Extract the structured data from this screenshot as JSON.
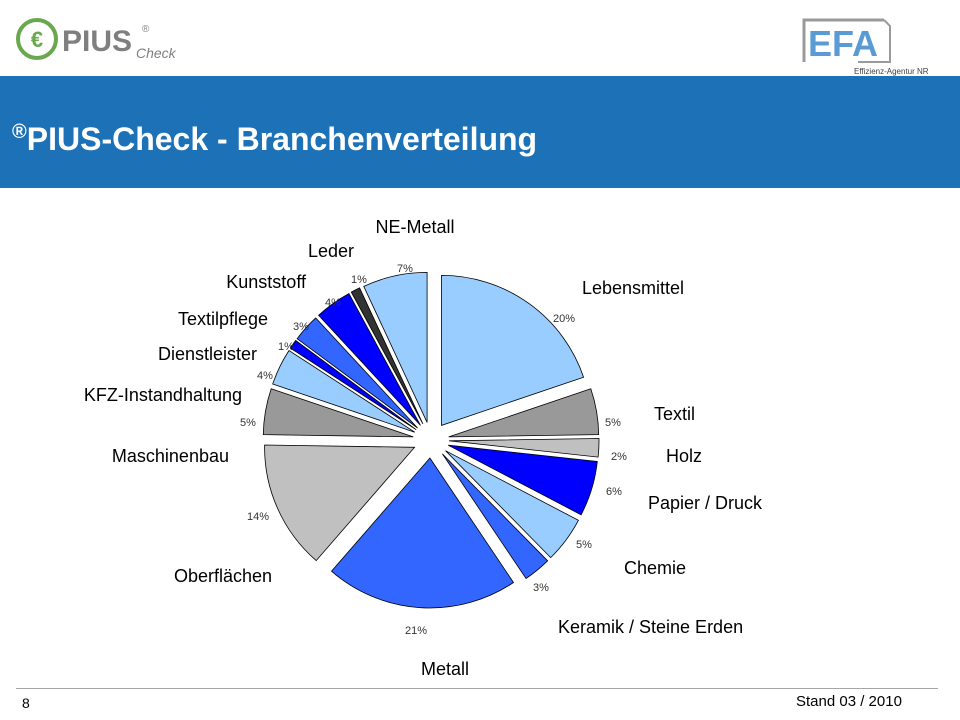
{
  "header": {
    "logo_left": "PIUS",
    "logo_left_sub": "Check",
    "logo_right": "EFA",
    "logo_right_sub": "Effizienz-Agentur NRW",
    "title_mark": "®",
    "title": "PIUS-Check - Branchenverteilung"
  },
  "chart_data": {
    "type": "pie",
    "exploded": true,
    "start_angle_deg": 0,
    "direction": "clockwise",
    "slices": [
      {
        "label": "Lebensmittel",
        "value": 20,
        "value_label": "20%",
        "color": "#99ccff"
      },
      {
        "label": "Textil",
        "value": 5,
        "value_label": "5%",
        "color": "#999999"
      },
      {
        "label": "Holz",
        "value": 2,
        "value_label": "2%",
        "color": "#c0c0c0"
      },
      {
        "label": "Papier / Druck",
        "value": 6,
        "value_label": "6%",
        "color": "#0000ff"
      },
      {
        "label": "Chemie",
        "value": 5,
        "value_label": "5%",
        "color": "#99ccff"
      },
      {
        "label": "Keramik / Steine Erden",
        "value": 3,
        "value_label": "3%",
        "color": "#3366ff"
      },
      {
        "label": "Metall",
        "value": 21,
        "value_label": "21%",
        "color": "#3366ff"
      },
      {
        "label": "Oberflächen",
        "value": 14,
        "value_label": "14%",
        "color": "#c0c0c0"
      },
      {
        "label": "Maschinenbau",
        "value": 5,
        "value_label": "5%",
        "color": "#999999"
      },
      {
        "label": "KFZ-Instandhaltung",
        "value": 4,
        "value_label": "4%",
        "color": "#99ccff"
      },
      {
        "label": "Dienstleister",
        "value": 1,
        "value_label": "1%",
        "color": "#0000ff"
      },
      {
        "label": "Textilpflege",
        "value": 3,
        "value_label": "3%",
        "color": "#3366ff"
      },
      {
        "label": "Kunststoff",
        "value": 4,
        "value_label": "4%",
        "color": "#0000ff"
      },
      {
        "label": "Leder",
        "value": 1,
        "value_label": "1%",
        "color": "#333333"
      },
      {
        "label": "NE-Metall",
        "value": 7,
        "value_label": "7%",
        "color": "#99ccff"
      }
    ]
  },
  "footer": {
    "page_number": "8",
    "date": "Stand 03 / 2010"
  }
}
